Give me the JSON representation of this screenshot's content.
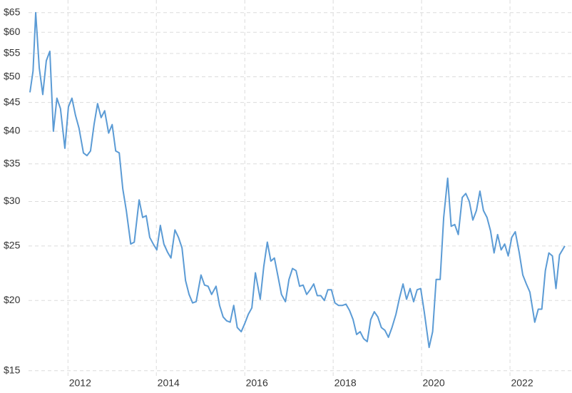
{
  "chart_data": {
    "type": "line",
    "log_scale": true,
    "grid": true,
    "color": "#5b9bd5",
    "xlim": [
      2011.14,
      2023.29
    ],
    "xticks": [
      2012,
      2014,
      2016,
      2018,
      2020,
      2022
    ],
    "ylim": [
      14.6,
      66.5
    ],
    "yticks": [
      {
        "value": 15,
        "label": "$15"
      },
      {
        "value": 20,
        "label": "$20"
      },
      {
        "value": 25,
        "label": "$25"
      },
      {
        "value": 30,
        "label": "$30"
      },
      {
        "value": 35,
        "label": "$35"
      },
      {
        "value": 40,
        "label": "$40"
      },
      {
        "value": 45,
        "label": "$45"
      },
      {
        "value": 50,
        "label": "$50"
      },
      {
        "value": 55,
        "label": "$55"
      },
      {
        "value": 60,
        "label": "$60"
      },
      {
        "value": 65,
        "label": "$65"
      }
    ],
    "x": [
      2011.14,
      2011.21,
      2011.27,
      2011.35,
      2011.43,
      2011.51,
      2011.59,
      2011.67,
      2011.75,
      2011.83,
      2011.93,
      2012.01,
      2012.09,
      2012.17,
      2012.25,
      2012.35,
      2012.43,
      2012.51,
      2012.59,
      2012.67,
      2012.75,
      2012.83,
      2012.92,
      2013.0,
      2013.08,
      2013.16,
      2013.24,
      2013.32,
      2013.42,
      2013.5,
      2013.61,
      2013.69,
      2013.77,
      2013.85,
      2013.93,
      2014.01,
      2014.09,
      2014.17,
      2014.25,
      2014.33,
      2014.42,
      2014.5,
      2014.58,
      2014.66,
      2014.74,
      2014.82,
      2014.9,
      2015.01,
      2015.09,
      2015.17,
      2015.25,
      2015.35,
      2015.43,
      2015.51,
      2015.59,
      2015.67,
      2015.75,
      2015.83,
      2015.92,
      2016.0,
      2016.08,
      2016.16,
      2016.24,
      2016.35,
      2016.43,
      2016.51,
      2016.59,
      2016.67,
      2016.75,
      2016.83,
      2016.92,
      2017.0,
      2017.08,
      2017.16,
      2017.24,
      2017.32,
      2017.4,
      2017.48,
      2017.56,
      2017.64,
      2017.72,
      2017.8,
      2017.88,
      2017.96,
      2018.04,
      2018.12,
      2018.21,
      2018.29,
      2018.37,
      2018.45,
      2018.53,
      2018.61,
      2018.69,
      2018.77,
      2018.85,
      2018.93,
      2019.01,
      2019.09,
      2019.17,
      2019.25,
      2019.33,
      2019.42,
      2019.5,
      2019.58,
      2019.66,
      2019.74,
      2019.82,
      2019.9,
      2019.98,
      2020.06,
      2020.17,
      2020.25,
      2020.33,
      2020.42,
      2020.5,
      2020.59,
      2020.67,
      2020.75,
      2020.83,
      2020.92,
      2021.0,
      2021.08,
      2021.16,
      2021.24,
      2021.32,
      2021.4,
      2021.48,
      2021.56,
      2021.64,
      2021.72,
      2021.8,
      2021.88,
      2021.96,
      2022.04,
      2022.12,
      2022.21,
      2022.29,
      2022.37,
      2022.45,
      2022.56,
      2022.64,
      2022.72,
      2022.8,
      2022.88,
      2022.96,
      2023.04,
      2023.12,
      2023.24
    ],
    "values": [
      46.9,
      51.2,
      65,
      51.9,
      46.5,
      53.4,
      55.5,
      40,
      45.8,
      43.9,
      37.3,
      44.2,
      45.8,
      42.7,
      40.5,
      36.6,
      36.2,
      36.9,
      41.1,
      44.8,
      42.3,
      43.5,
      39.7,
      41.1,
      36.9,
      36.6,
      31.6,
      28.9,
      25.2,
      25.4,
      30.2,
      28.1,
      28.3,
      25.9,
      25.2,
      24.6,
      27.2,
      25.2,
      24.4,
      23.8,
      26.7,
      25.9,
      24.8,
      21.7,
      20.5,
      19.8,
      19.9,
      22.2,
      21.3,
      21.2,
      20.5,
      21.2,
      19.6,
      18.7,
      18.4,
      18.3,
      19.6,
      17.9,
      17.6,
      18.2,
      18.9,
      19.4,
      22.4,
      20.1,
      23.0,
      25.4,
      23.5,
      23.8,
      22.1,
      20.5,
      19.9,
      21.8,
      22.8,
      22.6,
      21.2,
      21.3,
      20.5,
      20.9,
      21.4,
      20.4,
      20.4,
      20.0,
      20.9,
      20.9,
      19.8,
      19.6,
      19.6,
      19.7,
      19.2,
      18.5,
      17.4,
      17.6,
      17.1,
      16.9,
      18.5,
      19.1,
      18.7,
      17.9,
      17.7,
      17.2,
      17.9,
      18.9,
      20.2,
      21.4,
      20.1,
      21.0,
      19.9,
      20.9,
      21.0,
      19.1,
      16.5,
      17.6,
      21.8,
      21.8,
      28.1,
      33.0,
      27.1,
      27.3,
      26.2,
      30.5,
      31.0,
      30.0,
      27.8,
      28.9,
      31.3,
      28.9,
      28.1,
      26.6,
      24.3,
      26.2,
      24.6,
      25.2,
      24.0,
      25.9,
      26.5,
      24.3,
      22.2,
      21.4,
      20.7,
      18.3,
      19.3,
      19.3,
      22.6,
      24.3,
      24.0,
      21.0,
      24.1,
      25.0
    ]
  }
}
